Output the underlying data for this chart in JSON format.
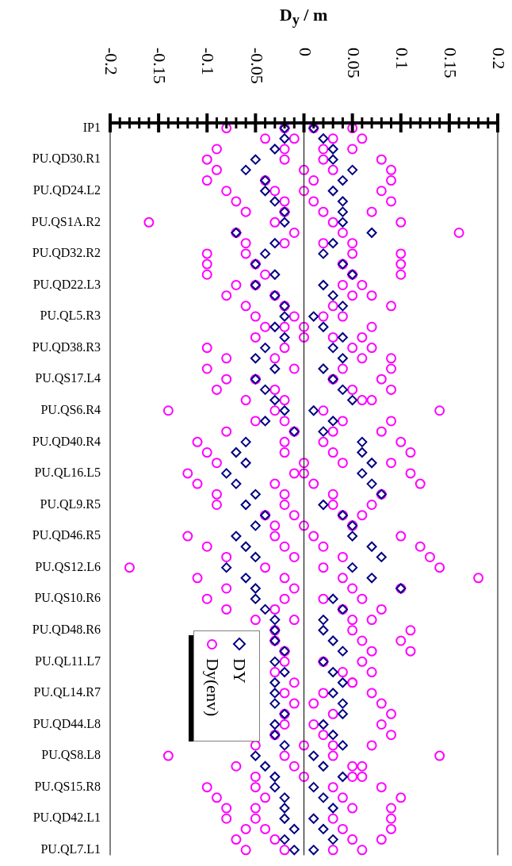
{
  "chart_data": {
    "type": "scatter",
    "orientation": "horizontal",
    "xlabel": "D$_{y}$ / m",
    "categories": [
      "IP1",
      null,
      null,
      "PU.QD30.R1",
      null,
      null,
      "PU.QD24.L2",
      null,
      null,
      "PU.QS1A.R2",
      null,
      null,
      "PU.QD32.R2",
      null,
      null,
      "PU.QD22.L3",
      null,
      null,
      "PU.QL5.R3",
      null,
      null,
      "PU.QD38.R3",
      null,
      null,
      "PU.QS17.L4",
      null,
      null,
      "PU.QS6.R4",
      null,
      null,
      "PU.QD40.R4",
      null,
      null,
      "PU.QL16.L5",
      null,
      null,
      "PU.QL9.R5",
      null,
      null,
      "PU.QD46.R5",
      null,
      null,
      "PU.QS12.L6",
      null,
      null,
      "PU.QS10.R6",
      null,
      null,
      "PU.QD48.R6",
      null,
      null,
      "PU.QL11.L7",
      null,
      null,
      "PU.QL14.R7",
      null,
      null,
      "PU.QD44.L8",
      null,
      null,
      "PU.QS8.L8",
      null,
      null,
      "PU.QS15.R8",
      null,
      null,
      "PU.QD42.L1",
      null,
      null,
      "PU.QL7.L1"
    ],
    "series": [
      {
        "name": "DY",
        "color": "#000080",
        "marker": "diamond",
        "values": [
          -0.02,
          -0.02,
          -0.03,
          -0.05,
          -0.06,
          -0.04,
          -0.04,
          -0.03,
          -0.02,
          -0.02,
          -0.07,
          -0.03,
          -0.04,
          -0.05,
          -0.03,
          -0.05,
          -0.03,
          -0.02,
          -0.02,
          -0.03,
          -0.02,
          -0.04,
          -0.05,
          -0.03,
          -0.05,
          -0.04,
          -0.03,
          -0.02,
          -0.04,
          -0.01,
          -0.06,
          -0.07,
          -0.06,
          -0.08,
          -0.07,
          -0.05,
          -0.06,
          -0.04,
          -0.05,
          -0.07,
          -0.06,
          -0.05,
          -0.08,
          -0.06,
          -0.05,
          -0.05,
          -0.04,
          -0.03,
          -0.03,
          -0.03,
          -0.02,
          -0.03,
          -0.02,
          -0.03,
          -0.03,
          -0.03,
          -0.02,
          -0.03,
          -0.03,
          -0.02,
          -0.05,
          -0.04,
          -0.03,
          -0.03,
          -0.02,
          -0.02,
          -0.02,
          -0.01,
          -0.02,
          -0.01
        ]
      },
      {
        "color": "#000080",
        "marker": "diamond",
        "values": [
          0.01,
          0.02,
          0.03,
          0.03,
          0.05,
          0.04,
          0.03,
          0.04,
          0.04,
          0.04,
          0.07,
          0.03,
          0.02,
          0.04,
          0.05,
          0.02,
          0.03,
          0.04,
          0.01,
          0.02,
          0.04,
          0.03,
          0.04,
          0.02,
          0.03,
          0.04,
          0.05,
          0.01,
          0.03,
          0.02,
          0.06,
          0.06,
          0.07,
          0.06,
          0.07,
          0.08,
          0.02,
          0.04,
          0.05,
          0.05,
          0.07,
          0.08,
          0.05,
          0.07,
          0.1,
          0.03,
          0.04,
          0.02,
          0.02,
          0.03,
          0.04,
          0.02,
          0.03,
          0.04,
          0.03,
          0.04,
          0.04,
          0.02,
          0.03,
          0.04,
          0.01,
          0.02,
          0.04,
          0.01,
          0.02,
          0.03,
          0.01,
          0.02,
          0.03,
          0.01
        ]
      },
      {
        "name": "Dy(env)",
        "color": "#ff00ff",
        "marker": "circle",
        "values": [
          -0.08,
          -0.04,
          -0.09,
          -0.1,
          -0.09,
          -0.1,
          -0.08,
          -0.07,
          -0.06,
          -0.16,
          -0.07,
          -0.06,
          -0.1,
          -0.1,
          -0.1,
          -0.07,
          -0.08,
          -0.06,
          -0.05,
          -0.04,
          -0.05,
          -0.1,
          -0.08,
          -0.1,
          -0.08,
          -0.09,
          -0.06,
          -0.14,
          -0.05,
          -0.08,
          -0.11,
          -0.1,
          -0.09,
          -0.12,
          -0.11,
          -0.09,
          -0.09,
          -0.04,
          -0.03,
          -0.12,
          -0.1,
          -0.08,
          -0.18,
          -0.11,
          -0.08,
          -0.1,
          -0.08,
          -0.05,
          null,
          null,
          null,
          null,
          null,
          null,
          null,
          null,
          null,
          null,
          null,
          -0.05,
          -0.14,
          -0.07,
          -0.05,
          -0.1,
          -0.09,
          -0.08,
          -0.08,
          -0.06,
          -0.07,
          -0.06
        ]
      },
      {
        "color": "#ff00ff",
        "marker": "circle",
        "values": [
          -0.02,
          -0.01,
          -0.02,
          -0.02,
          0.0,
          -0.04,
          -0.03,
          -0.02,
          -0.02,
          -0.03,
          -0.01,
          -0.02,
          -0.06,
          -0.05,
          -0.04,
          -0.05,
          -0.03,
          -0.02,
          -0.01,
          -0.02,
          0.0,
          -0.02,
          -0.03,
          -0.01,
          -0.05,
          -0.03,
          -0.02,
          -0.03,
          -0.02,
          -0.01,
          -0.02,
          -0.02,
          0.0,
          -0.01,
          -0.03,
          -0.02,
          -0.02,
          -0.01,
          0.0,
          -0.03,
          -0.02,
          -0.01,
          -0.04,
          -0.02,
          -0.01,
          -0.02,
          -0.03,
          -0.01,
          -0.03,
          -0.03,
          -0.02,
          -0.02,
          -0.03,
          -0.01,
          -0.02,
          -0.01,
          -0.02,
          -0.02,
          -0.03,
          0.0,
          -0.02,
          -0.01,
          0.0,
          -0.05,
          -0.04,
          -0.05,
          -0.05,
          -0.04,
          -0.03,
          -0.02
        ]
      },
      {
        "color": "#ff00ff",
        "marker": "circle",
        "values": [
          0.01,
          0.03,
          0.02,
          0.02,
          0.03,
          0.01,
          0.0,
          0.01,
          0.02,
          0.03,
          0.04,
          0.02,
          0.05,
          0.04,
          0.05,
          0.04,
          0.05,
          0.03,
          0.02,
          0.0,
          0.03,
          0.05,
          0.06,
          0.04,
          0.03,
          0.05,
          0.06,
          0.02,
          0.04,
          0.03,
          0.02,
          0.03,
          0.04,
          0.0,
          0.01,
          0.03,
          0.03,
          0.04,
          0.05,
          0.01,
          0.02,
          0.04,
          0.02,
          0.04,
          0.05,
          0.02,
          0.04,
          0.05,
          0.05,
          0.06,
          0.07,
          0.02,
          0.04,
          0.05,
          0.02,
          0.01,
          0.03,
          0.01,
          0.02,
          0.03,
          0.03,
          0.05,
          0.06,
          0.03,
          0.04,
          0.05,
          0.03,
          0.04,
          0.05,
          0.03
        ]
      },
      {
        "color": "#ff00ff",
        "marker": "circle",
        "values": [
          0.05,
          0.06,
          0.05,
          0.08,
          0.09,
          0.09,
          0.08,
          0.09,
          0.07,
          0.1,
          0.16,
          0.05,
          0.1,
          0.1,
          0.1,
          0.06,
          0.07,
          0.09,
          0.04,
          0.07,
          0.06,
          0.07,
          0.09,
          0.09,
          0.08,
          0.09,
          0.07,
          0.14,
          0.09,
          0.08,
          0.1,
          0.11,
          0.09,
          0.11,
          0.12,
          0.08,
          0.07,
          0.06,
          0.05,
          0.1,
          0.12,
          0.13,
          0.14,
          0.18,
          0.1,
          0.06,
          0.08,
          0.07,
          0.11,
          0.1,
          0.11,
          0.06,
          0.07,
          0.05,
          0.07,
          0.08,
          0.09,
          0.08,
          0.09,
          0.07,
          0.14,
          0.06,
          0.05,
          0.08,
          0.1,
          0.09,
          0.09,
          0.09,
          0.08,
          0.06
        ]
      }
    ],
    "xlim": [
      -0.2,
      0.2
    ],
    "xticks": [
      -0.2,
      {
        "value": -0.19,
        "label": null
      },
      {
        "value": -0.18,
        "label": null
      },
      {
        "value": -0.17,
        "label": null
      },
      {
        "value": -0.16,
        "label": null
      },
      -0.15,
      {
        "value": -0.14,
        "label": null
      },
      {
        "value": -0.13,
        "label": null
      },
      {
        "value": -0.12,
        "label": null
      },
      {
        "value": -0.11,
        "label": null
      },
      -0.1,
      {
        "value": -0.09,
        "label": null
      },
      {
        "value": -0.08,
        "label": null
      },
      {
        "value": -0.07,
        "label": null
      },
      {
        "value": -0.06,
        "label": null
      },
      -0.05,
      {
        "value": -0.04,
        "label": null
      },
      {
        "value": -0.03,
        "label": null
      },
      {
        "value": -0.02,
        "label": null
      },
      {
        "value": -0.01,
        "label": null
      },
      0,
      {
        "value": 0.01,
        "label": null
      },
      {
        "value": 0.02,
        "label": null
      },
      {
        "value": 0.03,
        "label": null
      },
      {
        "value": 0.04,
        "label": null
      },
      0.05,
      {
        "value": 0.06,
        "label": null
      },
      {
        "value": 0.07,
        "label": null
      },
      {
        "value": 0.08,
        "label": null
      },
      {
        "value": 0.09,
        "label": null
      },
      0.1,
      {
        "value": 0.11,
        "label": null
      },
      {
        "value": 0.12,
        "label": null
      },
      {
        "value": 0.13,
        "label": null
      },
      {
        "value": 0.14,
        "label": null
      },
      0.15,
      {
        "value": 0.16,
        "label": null
      },
      {
        "value": 0.17,
        "label": null
      },
      {
        "value": 0.18,
        "label": null
      },
      {
        "value": 0.19,
        "label": null
      },
      0.2
    ],
    "ref_lines": [
      {
        "axis": "x",
        "value": 0,
        "color": "#000000"
      }
    ],
    "grid": false,
    "legend": "left"
  }
}
